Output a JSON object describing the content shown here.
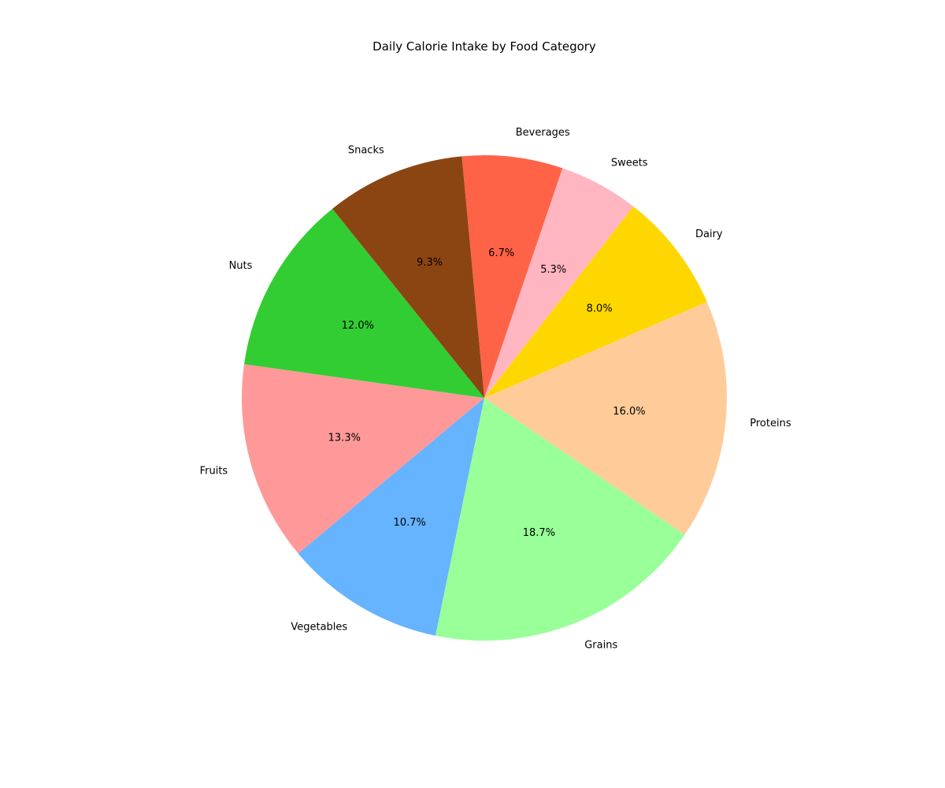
{
  "chart_data": {
    "type": "pie",
    "title": "Daily Calorie Intake by Food Category",
    "start_angle_deg": 172,
    "direction": "counterclockwise",
    "slices": [
      {
        "label": "Fruits",
        "value": 13.3,
        "pct_label": "13.3%",
        "color": "#ff9999"
      },
      {
        "label": "Vegetables",
        "value": 10.7,
        "pct_label": "10.7%",
        "color": "#66b3ff"
      },
      {
        "label": "Grains",
        "value": 18.7,
        "pct_label": "18.7%",
        "color": "#99ff99"
      },
      {
        "label": "Proteins",
        "value": 16.0,
        "pct_label": "16.0%",
        "color": "#ffcc99"
      },
      {
        "label": "Dairy",
        "value": 8.0,
        "pct_label": "8.0%",
        "color": "#ffd700"
      },
      {
        "label": "Sweets",
        "value": 5.3,
        "pct_label": "5.3%",
        "color": "#ffb6c1"
      },
      {
        "label": "Beverages",
        "value": 6.7,
        "pct_label": "6.7%",
        "color": "#ff6347"
      },
      {
        "label": "Snacks",
        "value": 9.3,
        "pct_label": "9.3%",
        "color": "#8b4513"
      },
      {
        "label": "Nuts",
        "value": 12.0,
        "pct_label": "12.0%",
        "color": "#32cd32"
      }
    ]
  }
}
